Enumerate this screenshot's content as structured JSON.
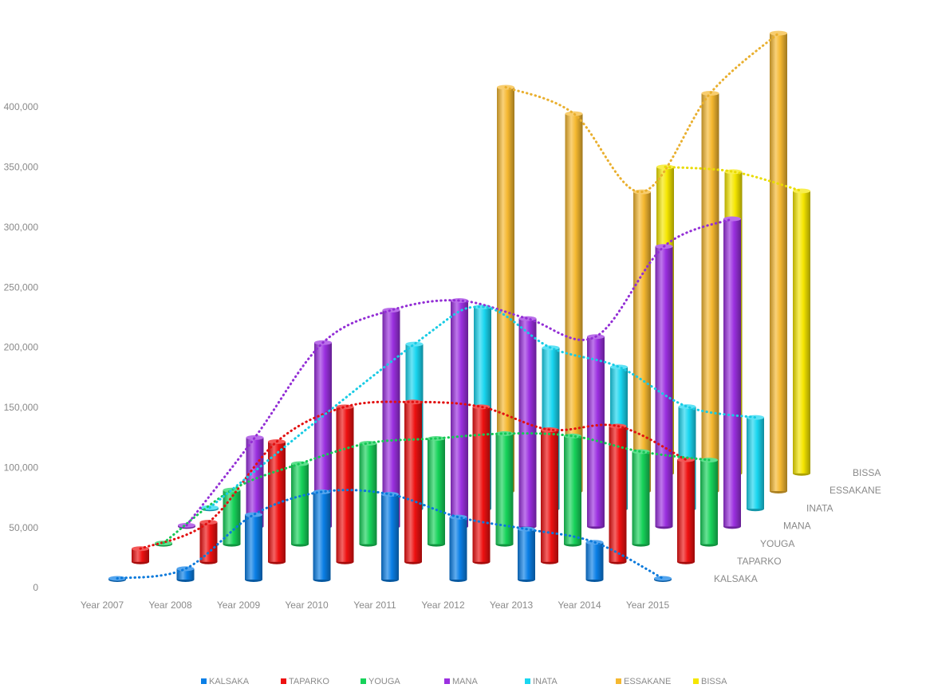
{
  "chart_data": {
    "type": "bar3d",
    "categories": [
      "Year 2007",
      "Year 2008",
      "Year 2009",
      "Year 2010",
      "Year 2011",
      "Year 2012",
      "Year 2013",
      "Year 2014",
      "Year 2015"
    ],
    "series": [
      {
        "name": "KALSAKA",
        "color": "#0a7fe6",
        "values": [
          1000,
          9000,
          54000,
          73000,
          71000,
          52000,
          42000,
          31000,
          1000
        ]
      },
      {
        "name": "TAPARKO",
        "color": "#ee1111",
        "values": [
          11000,
          33000,
          100000,
          129000,
          133000,
          129000,
          110000,
          113000,
          85000
        ]
      },
      {
        "name": "YOUGA",
        "color": "#17d35a",
        "values": [
          1000,
          45000,
          67000,
          84000,
          88000,
          92000,
          90000,
          77000,
          70000
        ]
      },
      {
        "name": "MANA",
        "color": "#9b30e0",
        "values": [
          1000,
          74000,
          153000,
          180000,
          188000,
          173000,
          158000,
          233000,
          256000
        ]
      },
      {
        "name": "INATA",
        "color": "#19d6f0",
        "values": [
          1000,
          null,
          null,
          137000,
          168000,
          134000,
          118000,
          85000,
          76000
        ]
      },
      {
        "name": "ESSAKANE",
        "color": "#f5b830",
        "values": [
          null,
          null,
          null,
          null,
          336000,
          314000,
          249000,
          331000,
          381000
        ]
      },
      {
        "name": "BISSA",
        "color": "#f5e600",
        "values": [
          null,
          null,
          null,
          null,
          null,
          null,
          255000,
          251000,
          235000
        ]
      }
    ],
    "ylim": [
      0,
      400000
    ],
    "yticks": [
      0,
      {
        "value": 50000,
        "label": "50,000"
      },
      {
        "value": 100000,
        "label": "100,000"
      },
      {
        "value": 150000,
        "label": "150,000"
      },
      {
        "value": 200000,
        "label": "200,000"
      },
      {
        "value": 250000,
        "label": "250,000"
      },
      {
        "value": 300000,
        "label": "300,000"
      },
      {
        "value": 350000,
        "label": "350,000"
      },
      {
        "value": 400000,
        "label": "400,000"
      }
    ],
    "legend": "bottom"
  }
}
